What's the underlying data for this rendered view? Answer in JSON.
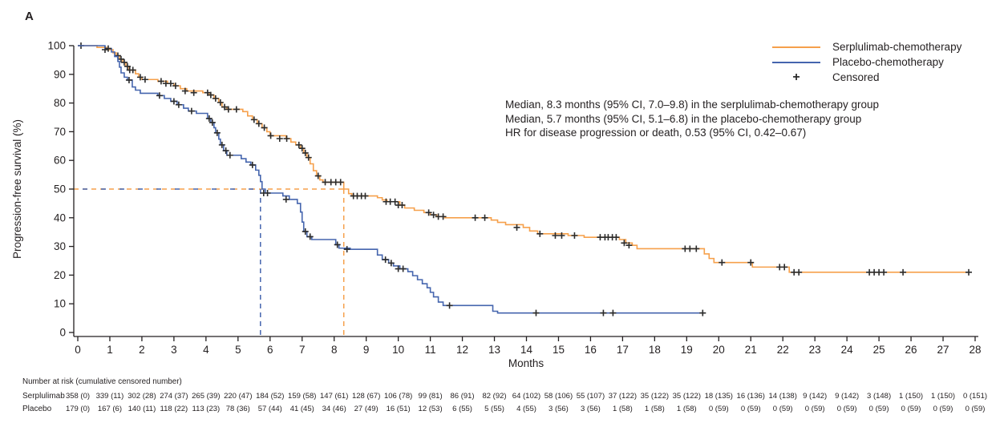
{
  "panel_label": "A",
  "colors": {
    "serplulimab": "#F6A04B",
    "placebo": "#4565AE",
    "censor": "#2b2b2b",
    "text": "#231f20",
    "axis": "#231f20"
  },
  "legend": {
    "items": [
      {
        "label": "Serplulimab-chemotherapy",
        "marker": "line",
        "color": "#F6A04B"
      },
      {
        "label": "Placebo-chemotherapy",
        "marker": "line",
        "color": "#4565AE"
      },
      {
        "label": "Censored",
        "marker": "plus",
        "color": "#2b2b2b"
      }
    ]
  },
  "annotation": {
    "lines": [
      "Median, 8.3 months (95% CI, 7.0–9.8) in the serplulimab-chemotherapy group",
      "Median, 5.7 months (95% CI, 5.1–6.8) in the placebo-chemotherapy group",
      "HR for disease progression or death, 0.53 (95% CI, 0.42–0.67)"
    ]
  },
  "chart_data": {
    "type": "line",
    "subtype": "kaplan-meier-step",
    "title": "",
    "xlabel": "Months",
    "ylabel": "Progression-free survival (%)",
    "xlim": [
      0,
      28
    ],
    "ylim": [
      0,
      100
    ],
    "x_ticks": [
      0,
      1,
      2,
      3,
      4,
      5,
      6,
      7,
      8,
      9,
      10,
      11,
      12,
      13,
      14,
      15,
      16,
      17,
      18,
      19,
      20,
      21,
      22,
      23,
      24,
      25,
      26,
      27,
      28
    ],
    "y_ticks": [
      0,
      10,
      20,
      30,
      40,
      50,
      60,
      70,
      80,
      90,
      100
    ],
    "grid": false,
    "legend_position": "top-right",
    "medians": {
      "serplulimab_months": 8.3,
      "placebo_months": 5.7,
      "survival_pct": 50
    },
    "series": [
      {
        "name": "Serplulimab-chemotherapy",
        "color": "#F6A04B",
        "end_time": 27.8,
        "steps": [
          [
            0,
            100
          ],
          [
            0.6,
            99.4
          ],
          [
            0.9,
            98.6
          ],
          [
            1.1,
            97.5
          ],
          [
            1.2,
            96.5
          ],
          [
            1.3,
            95.3
          ],
          [
            1.4,
            94.2
          ],
          [
            1.5,
            92.8
          ],
          [
            1.6,
            91.5
          ],
          [
            1.8,
            90.2
          ],
          [
            1.9,
            89.0
          ],
          [
            2.0,
            88.2
          ],
          [
            2.5,
            87.6
          ],
          [
            2.8,
            86.8
          ],
          [
            3.0,
            86.0
          ],
          [
            3.2,
            85.0
          ],
          [
            3.4,
            84.2
          ],
          [
            3.9,
            83.6
          ],
          [
            4.1,
            82.8
          ],
          [
            4.25,
            81.6
          ],
          [
            4.4,
            80.2
          ],
          [
            4.5,
            78.6
          ],
          [
            4.65,
            77.8
          ],
          [
            5.15,
            77.0
          ],
          [
            5.3,
            75.5
          ],
          [
            5.45,
            74.2
          ],
          [
            5.6,
            72.8
          ],
          [
            5.75,
            71.4
          ],
          [
            5.9,
            70.0
          ],
          [
            6.0,
            68.6
          ],
          [
            6.5,
            67.6
          ],
          [
            6.65,
            66.4
          ],
          [
            6.8,
            65.4
          ],
          [
            6.95,
            64.2
          ],
          [
            7.05,
            62.6
          ],
          [
            7.15,
            61.0
          ],
          [
            7.25,
            58.8
          ],
          [
            7.35,
            56.4
          ],
          [
            7.45,
            54.6
          ],
          [
            7.55,
            53.2
          ],
          [
            7.65,
            52.4
          ],
          [
            8.3,
            50.0
          ],
          [
            8.45,
            48.4
          ],
          [
            8.55,
            47.6
          ],
          [
            9.35,
            47.0
          ],
          [
            9.5,
            46.2
          ],
          [
            9.65,
            45.6
          ],
          [
            10.05,
            44.4
          ],
          [
            10.2,
            43.4
          ],
          [
            10.5,
            42.6
          ],
          [
            10.8,
            41.8
          ],
          [
            11.0,
            41.0
          ],
          [
            11.2,
            40.4
          ],
          [
            11.45,
            40.0
          ],
          [
            12.9,
            39.2
          ],
          [
            13.1,
            38.4
          ],
          [
            13.35,
            37.6
          ],
          [
            13.9,
            36.6
          ],
          [
            14.1,
            35.4
          ],
          [
            14.35,
            34.4
          ],
          [
            15.3,
            33.8
          ],
          [
            15.8,
            33.2
          ],
          [
            16.9,
            32.4
          ],
          [
            17.1,
            31.2
          ],
          [
            17.3,
            30.4
          ],
          [
            17.45,
            29.2
          ],
          [
            19.55,
            27.4
          ],
          [
            19.7,
            25.8
          ],
          [
            19.85,
            24.4
          ],
          [
            21.05,
            22.8
          ],
          [
            22.2,
            21.0
          ]
        ],
        "censors": [
          [
            0.1,
            100
          ],
          [
            0.85,
            98.6
          ],
          [
            1.25,
            96.5
          ],
          [
            1.35,
            95.3
          ],
          [
            1.45,
            94.2
          ],
          [
            1.55,
            92.8
          ],
          [
            1.62,
            91.5
          ],
          [
            1.72,
            91.5
          ],
          [
            1.95,
            89.0
          ],
          [
            2.1,
            88.2
          ],
          [
            2.6,
            87.6
          ],
          [
            2.75,
            86.8
          ],
          [
            2.9,
            86.8
          ],
          [
            3.05,
            86.0
          ],
          [
            3.35,
            84.2
          ],
          [
            3.62,
            83.6
          ],
          [
            4.05,
            83.6
          ],
          [
            4.15,
            82.8
          ],
          [
            4.3,
            81.6
          ],
          [
            4.45,
            80.2
          ],
          [
            4.58,
            78.6
          ],
          [
            4.7,
            77.8
          ],
          [
            4.95,
            77.8
          ],
          [
            5.5,
            74.2
          ],
          [
            5.65,
            72.8
          ],
          [
            5.82,
            71.4
          ],
          [
            6.02,
            68.6
          ],
          [
            6.3,
            67.6
          ],
          [
            6.52,
            67.6
          ],
          [
            6.9,
            65.4
          ],
          [
            7.0,
            64.2
          ],
          [
            7.1,
            62.6
          ],
          [
            7.2,
            61.0
          ],
          [
            7.5,
            54.6
          ],
          [
            7.72,
            52.4
          ],
          [
            7.9,
            52.4
          ],
          [
            8.05,
            52.4
          ],
          [
            8.2,
            52.4
          ],
          [
            8.6,
            47.6
          ],
          [
            8.72,
            47.6
          ],
          [
            8.85,
            47.6
          ],
          [
            8.97,
            47.6
          ],
          [
            9.62,
            45.6
          ],
          [
            9.75,
            45.6
          ],
          [
            9.9,
            45.6
          ],
          [
            10.0,
            44.4
          ],
          [
            10.12,
            44.4
          ],
          [
            10.95,
            41.8
          ],
          [
            11.1,
            41.0
          ],
          [
            11.25,
            40.4
          ],
          [
            11.4,
            40.4
          ],
          [
            12.4,
            40.0
          ],
          [
            12.7,
            40.0
          ],
          [
            13.7,
            36.6
          ],
          [
            14.42,
            34.4
          ],
          [
            14.9,
            33.8
          ],
          [
            15.1,
            33.8
          ],
          [
            15.5,
            33.8
          ],
          [
            16.3,
            33.2
          ],
          [
            16.45,
            33.2
          ],
          [
            16.55,
            33.2
          ],
          [
            16.68,
            33.2
          ],
          [
            16.8,
            33.2
          ],
          [
            17.05,
            31.2
          ],
          [
            17.2,
            30.4
          ],
          [
            18.95,
            29.2
          ],
          [
            19.1,
            29.2
          ],
          [
            19.3,
            29.2
          ],
          [
            20.1,
            24.4
          ],
          [
            21.0,
            24.4
          ],
          [
            21.9,
            22.8
          ],
          [
            22.05,
            22.8
          ],
          [
            22.35,
            21.0
          ],
          [
            22.5,
            21.0
          ],
          [
            24.7,
            21.0
          ],
          [
            24.85,
            21.0
          ],
          [
            25.0,
            21.0
          ],
          [
            25.15,
            21.0
          ],
          [
            25.75,
            21.0
          ],
          [
            27.8,
            21.0
          ]
        ]
      },
      {
        "name": "Placebo-chemotherapy",
        "color": "#4565AE",
        "end_time": 19.5,
        "steps": [
          [
            0,
            100
          ],
          [
            0.85,
            99.0
          ],
          [
            1.05,
            97.8
          ],
          [
            1.15,
            96.2
          ],
          [
            1.25,
            94.5
          ],
          [
            1.3,
            92.5
          ],
          [
            1.35,
            90.5
          ],
          [
            1.45,
            89.0
          ],
          [
            1.55,
            88.0
          ],
          [
            1.7,
            85.6
          ],
          [
            1.8,
            84.5
          ],
          [
            1.95,
            83.4
          ],
          [
            2.5,
            82.6
          ],
          [
            2.7,
            81.6
          ],
          [
            2.9,
            80.6
          ],
          [
            3.1,
            79.4
          ],
          [
            3.3,
            78.2
          ],
          [
            3.45,
            77.2
          ],
          [
            3.7,
            76.4
          ],
          [
            4.05,
            74.6
          ],
          [
            4.15,
            73.2
          ],
          [
            4.25,
            71.4
          ],
          [
            4.3,
            69.6
          ],
          [
            4.4,
            67.4
          ],
          [
            4.45,
            65.4
          ],
          [
            4.55,
            63.4
          ],
          [
            4.65,
            61.8
          ],
          [
            5.1,
            60.6
          ],
          [
            5.25,
            59.4
          ],
          [
            5.4,
            58.4
          ],
          [
            5.55,
            56.6
          ],
          [
            5.65,
            54.8
          ],
          [
            5.7,
            52.6
          ],
          [
            5.75,
            50.0
          ],
          [
            5.85,
            48.6
          ],
          [
            6.4,
            47.6
          ],
          [
            6.6,
            46.4
          ],
          [
            6.85,
            45.0
          ],
          [
            6.95,
            42.0
          ],
          [
            7.0,
            38.5
          ],
          [
            7.05,
            35.2
          ],
          [
            7.15,
            33.4
          ],
          [
            7.3,
            32.4
          ],
          [
            8.05,
            30.6
          ],
          [
            8.15,
            29.4
          ],
          [
            8.5,
            29.0
          ],
          [
            9.35,
            27.0
          ],
          [
            9.5,
            25.4
          ],
          [
            9.7,
            24.2
          ],
          [
            9.85,
            23.2
          ],
          [
            10.05,
            22.2
          ],
          [
            10.3,
            21.2
          ],
          [
            10.45,
            19.8
          ],
          [
            10.6,
            18.4
          ],
          [
            10.75,
            17.0
          ],
          [
            10.9,
            15.6
          ],
          [
            11.0,
            14.0
          ],
          [
            11.1,
            12.4
          ],
          [
            11.25,
            10.6
          ],
          [
            11.4,
            9.4
          ],
          [
            12.95,
            7.4
          ],
          [
            13.1,
            6.8
          ]
        ],
        "censors": [
          [
            0.95,
            99.0
          ],
          [
            1.6,
            88.0
          ],
          [
            2.55,
            82.6
          ],
          [
            3.0,
            80.6
          ],
          [
            3.15,
            79.4
          ],
          [
            3.55,
            77.2
          ],
          [
            4.1,
            74.6
          ],
          [
            4.2,
            73.2
          ],
          [
            4.35,
            69.6
          ],
          [
            4.5,
            65.4
          ],
          [
            4.62,
            63.4
          ],
          [
            4.75,
            61.8
          ],
          [
            5.45,
            58.4
          ],
          [
            5.8,
            48.6
          ],
          [
            5.92,
            48.6
          ],
          [
            6.5,
            46.4
          ],
          [
            7.1,
            35.2
          ],
          [
            7.25,
            33.4
          ],
          [
            8.1,
            30.6
          ],
          [
            8.4,
            29.0
          ],
          [
            9.6,
            25.4
          ],
          [
            9.78,
            24.2
          ],
          [
            10.0,
            22.2
          ],
          [
            10.15,
            22.2
          ],
          [
            11.6,
            9.4
          ],
          [
            14.3,
            6.8
          ],
          [
            16.4,
            6.8
          ],
          [
            16.7,
            6.8
          ],
          [
            19.5,
            6.8
          ]
        ]
      }
    ]
  },
  "at_risk": {
    "header": "Number at risk (cumulative censored number)",
    "months": [
      0,
      1,
      2,
      3,
      4,
      5,
      6,
      7,
      8,
      9,
      10,
      11,
      12,
      13,
      14,
      15,
      16,
      17,
      18,
      19,
      20,
      21,
      22,
      23,
      24,
      25,
      26,
      27,
      28
    ],
    "rows": [
      {
        "label": "Serplulimab",
        "values": [
          "358 (0)",
          "339 (11)",
          "302 (28)",
          "274 (37)",
          "265 (39)",
          "220 (47)",
          "184 (52)",
          "159 (58)",
          "147 (61)",
          "128 (67)",
          "106 (78)",
          "99 (81)",
          "86 (91)",
          "82 (92)",
          "64 (102)",
          "58 (106)",
          "55 (107)",
          "37 (122)",
          "35 (122)",
          "35 (122)",
          "18 (135)",
          "16 (136)",
          "14 (138)",
          "9 (142)",
          "9 (142)",
          "3 (148)",
          "1 (150)",
          "1 (150)",
          "0 (151)"
        ]
      },
      {
        "label": "Placebo",
        "values": [
          "179 (0)",
          "167 (6)",
          "140 (11)",
          "118 (22)",
          "113 (23)",
          "78 (36)",
          "57 (44)",
          "41 (45)",
          "34 (46)",
          "27 (49)",
          "16 (51)",
          "12 (53)",
          "6 (55)",
          "5 (55)",
          "4 (55)",
          "3 (56)",
          "3 (56)",
          "1 (58)",
          "1 (58)",
          "1 (58)",
          "0 (59)",
          "0 (59)",
          "0 (59)",
          "0 (59)",
          "0 (59)",
          "0 (59)",
          "0 (59)",
          "0 (59)",
          "0 (59)"
        ]
      }
    ]
  }
}
